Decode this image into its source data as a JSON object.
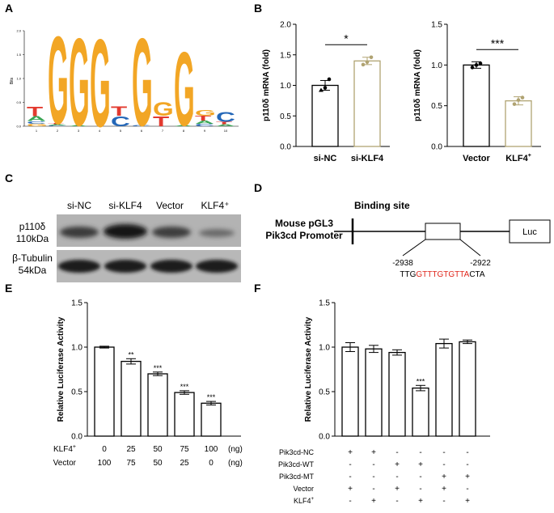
{
  "panel_labels": {
    "a": "A",
    "b": "B",
    "c": "C",
    "d": "D",
    "e": "E",
    "f": "F"
  },
  "logo": {
    "ylabel": "Bits",
    "yticks": [
      "0.0",
      "0.5",
      "1.0",
      "1.5",
      "2.0"
    ],
    "positions": [
      "1",
      "2",
      "3",
      "4",
      "5",
      "6",
      "7",
      "8",
      "9",
      "10"
    ],
    "colors": {
      "G": "#f2a625",
      "T": "#e33a2f",
      "C": "#2467b8",
      "A": "#3aa655"
    }
  },
  "chart_data": [
    {
      "type": "bar",
      "id": "B-left",
      "categories": [
        "si-NC",
        "si-KLF4"
      ],
      "values": [
        1.0,
        1.4
      ],
      "errors": [
        0.08,
        0.06
      ],
      "points": [
        [
          0.92,
          0.96,
          1.1
        ],
        [
          1.34,
          1.38,
          1.46
        ]
      ],
      "ylabel": "p110δ mRNA (fold)",
      "ylim": [
        0,
        2.0
      ],
      "yticks": [
        "0.0",
        "0.5",
        "1.0",
        "1.5",
        "2.0"
      ],
      "significance": "*",
      "bar_colors": [
        "#000000",
        "#b0a372"
      ]
    },
    {
      "type": "bar",
      "id": "B-right",
      "categories": [
        "Vector",
        "KLF4"
      ],
      "values": [
        1.0,
        0.56
      ],
      "errors": [
        0.04,
        0.05
      ],
      "points": [
        [
          0.97,
          1.0,
          1.02
        ],
        [
          0.52,
          0.57,
          0.6
        ]
      ],
      "ylabel": "p110δ mRNA (fold)",
      "ylim": [
        0,
        1.5
      ],
      "yticks": [
        "0.0",
        "0.5",
        "1.0",
        "1.5"
      ],
      "significance": "***",
      "bar_colors": [
        "#000000",
        "#b0a372"
      ]
    },
    {
      "type": "bar",
      "id": "E",
      "categories": [
        "1",
        "2",
        "3",
        "4",
        "5"
      ],
      "values": [
        1.0,
        0.84,
        0.7,
        0.49,
        0.37
      ],
      "errors": [
        0.01,
        0.03,
        0.02,
        0.02,
        0.02
      ],
      "stars": [
        "",
        "**",
        "***",
        "***",
        "***"
      ],
      "ylabel": "Relative Luciferase Activity",
      "ylim": [
        0,
        1.5
      ],
      "yticks": [
        "0.0",
        "0.5",
        "1.0",
        "1.5"
      ],
      "table": [
        {
          "label": "KLF4⁺",
          "values": [
            "0",
            "25",
            "50",
            "75",
            "100"
          ],
          "unit": "(ng)"
        },
        {
          "label": "Vector",
          "values": [
            "100",
            "75",
            "50",
            "25",
            "0"
          ],
          "unit": "(ng)"
        }
      ]
    },
    {
      "type": "bar",
      "id": "F",
      "categories": [
        "1",
        "2",
        "3",
        "4",
        "5",
        "6"
      ],
      "values": [
        1.0,
        0.98,
        0.94,
        0.54,
        1.04,
        1.06
      ],
      "errors": [
        0.05,
        0.04,
        0.03,
        0.03,
        0.05,
        0.02
      ],
      "stars": [
        "",
        "",
        "",
        "***",
        "",
        ""
      ],
      "ylabel": "Relative Luciferase Activity",
      "ylim": [
        0,
        1.5
      ],
      "yticks": [
        "0.0",
        "0.5",
        "1.0",
        "1.5"
      ],
      "table": [
        {
          "label": "Pik3cd-NC",
          "values": [
            "+",
            "+",
            "-",
            "-",
            "-",
            "-"
          ]
        },
        {
          "label": "Pik3cd-WT",
          "values": [
            "-",
            "-",
            "+",
            "+",
            "-",
            "-"
          ]
        },
        {
          "label": "Pik3cd-MT",
          "values": [
            "-",
            "-",
            "-",
            "-",
            "+",
            "+"
          ]
        },
        {
          "label": "Vector",
          "values": [
            "+",
            "-",
            "+",
            "-",
            "+",
            "-"
          ]
        },
        {
          "label": "KLF4⁺",
          "values": [
            "-",
            "+",
            "-",
            "+",
            "-",
            "+"
          ]
        }
      ]
    }
  ],
  "blot": {
    "lanes": [
      "si-NC",
      "si-KLF4",
      "Vector",
      "KLF4⁺"
    ],
    "row1_label1": "p110δ",
    "row1_label2": "110kDa",
    "row2_label1": "β-Tubulin",
    "row2_label2": "54kDa"
  },
  "promoter": {
    "title": "Binding site",
    "left_label1": "Mouse pGL3",
    "left_label2": "Pik3cd Promoter",
    "luc": "Luc",
    "pos_left": "-2938",
    "pos_right": "-2922",
    "seq_prefix": "TTG",
    "seq_core": "GTTTGTGTTA",
    "seq_suffix": "CTA",
    "core_color": "#e0261b"
  }
}
